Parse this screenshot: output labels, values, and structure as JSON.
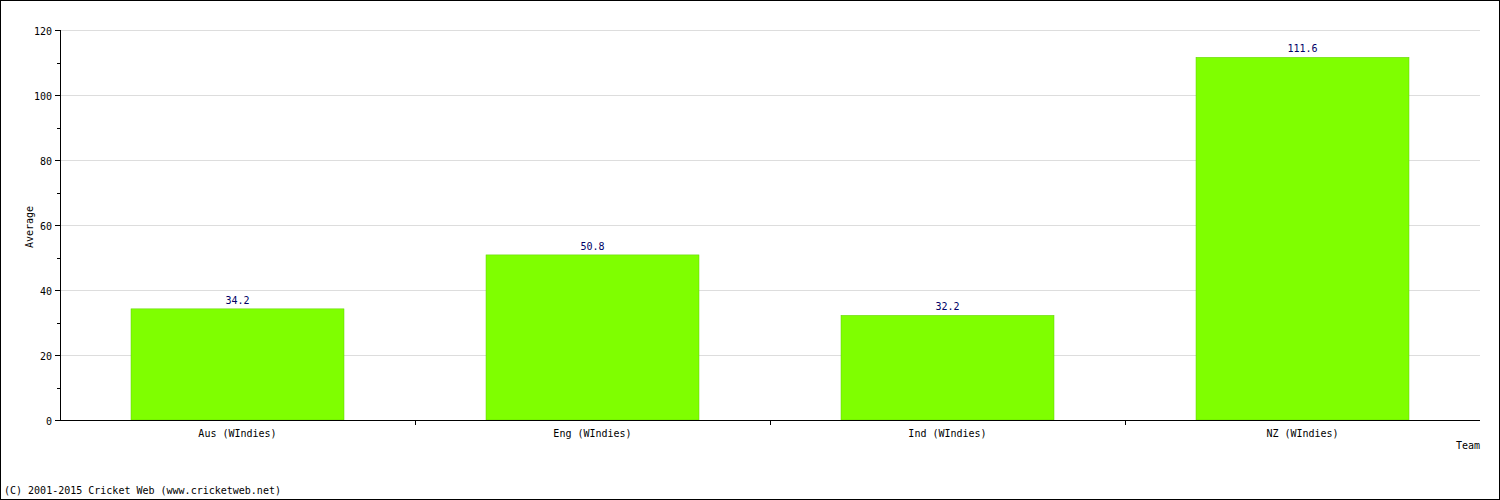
{
  "chart_data": {
    "type": "bar",
    "x_label": "Team",
    "y_label": "Average",
    "categories": [
      "Aus (WIndies)",
      "Eng (WIndies)",
      "Ind (WIndies)",
      "NZ (WIndies)"
    ],
    "values": [
      34.2,
      50.8,
      32.2,
      111.6
    ],
    "color": "#7fff00",
    "ylim": [
      0,
      120
    ],
    "yticks": [
      0,
      20,
      40,
      60,
      80,
      100,
      120
    ],
    "grid": true,
    "data_labels": true,
    "annotations": [
      "(C) 2001-2015 Cricket Web (www.cricketweb.net)"
    ]
  }
}
